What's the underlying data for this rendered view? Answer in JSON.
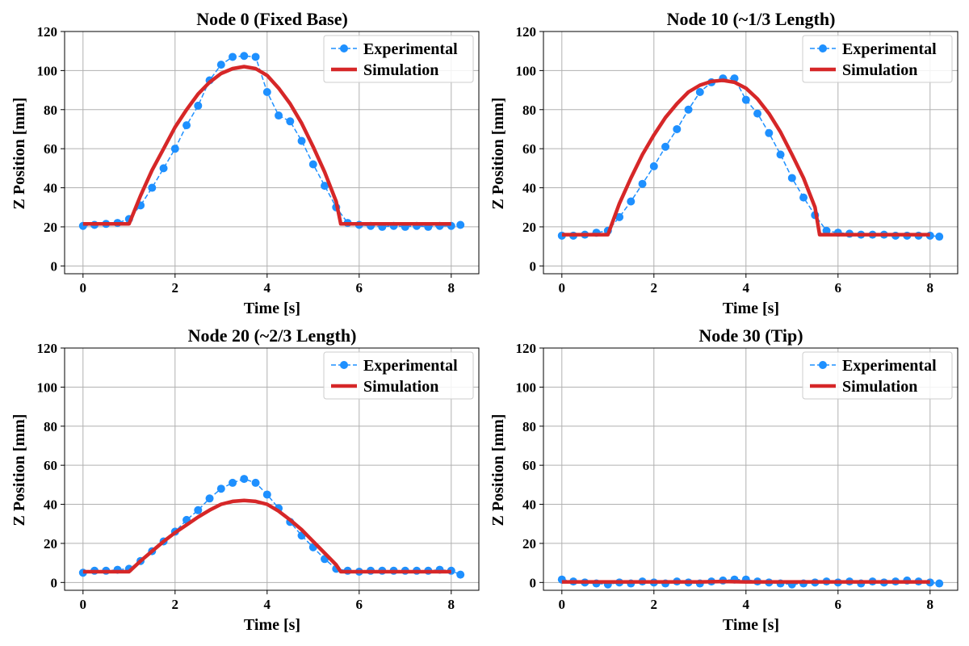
{
  "chart_data": [
    {
      "type": "line",
      "title": "Node 0 (Fixed Base)",
      "xlabel": "Time [s]",
      "ylabel": "Z Position [mm]",
      "xlim": [
        -0.4,
        8.6
      ],
      "ylim": [
        -4,
        120
      ],
      "xticks": [
        0,
        2,
        4,
        6,
        8
      ],
      "yticks": [
        0,
        20,
        40,
        60,
        80,
        100,
        120
      ],
      "grid": true,
      "legend": "top-right",
      "series": [
        {
          "name": "Experimental",
          "style": "dashed-markers",
          "color": "#1e90ff",
          "x": [
            0,
            0.25,
            0.5,
            0.75,
            1.0,
            1.25,
            1.5,
            1.75,
            2.0,
            2.25,
            2.5,
            2.75,
            3.0,
            3.25,
            3.5,
            3.75,
            4.0,
            4.25,
            4.5,
            4.75,
            5.0,
            5.25,
            5.5,
            5.75,
            6.0,
            6.25,
            6.5,
            6.75,
            7.0,
            7.25,
            7.5,
            7.75,
            8.0,
            8.2
          ],
          "y": [
            20.5,
            21,
            21.5,
            22,
            24,
            31,
            40,
            50,
            60,
            72,
            82,
            95,
            103,
            107,
            107.5,
            107,
            89,
            77,
            74,
            64,
            52,
            41,
            30,
            22,
            21,
            20.5,
            20,
            20.5,
            20,
            20.5,
            20,
            20.5,
            20.5,
            21
          ]
        },
        {
          "name": "Simulation",
          "style": "line",
          "color": "#d62728",
          "x": [
            0,
            1.0,
            1.25,
            1.5,
            1.75,
            2.0,
            2.25,
            2.5,
            2.75,
            3.0,
            3.25,
            3.5,
            3.75,
            4.0,
            4.25,
            4.5,
            4.75,
            5.0,
            5.25,
            5.5,
            5.6,
            6.0,
            8.0
          ],
          "y": [
            21.5,
            21.5,
            36,
            49,
            60,
            71,
            80,
            88,
            94,
            98.5,
            101,
            102,
            101,
            97.5,
            91,
            83,
            73,
            61,
            48,
            33,
            21.5,
            21.5,
            21.5
          ]
        }
      ]
    },
    {
      "type": "line",
      "title": "Node 10 (~1/3 Length)",
      "xlabel": "Time [s]",
      "ylabel": "Z Position [mm]",
      "xlim": [
        -0.4,
        8.6
      ],
      "ylim": [
        -4,
        120
      ],
      "xticks": [
        0,
        2,
        4,
        6,
        8
      ],
      "yticks": [
        0,
        20,
        40,
        60,
        80,
        100,
        120
      ],
      "grid": true,
      "legend": "top-right",
      "series": [
        {
          "name": "Experimental",
          "style": "dashed-markers",
          "color": "#1e90ff",
          "x": [
            0,
            0.25,
            0.5,
            0.75,
            1.0,
            1.25,
            1.5,
            1.75,
            2.0,
            2.25,
            2.5,
            2.75,
            3.0,
            3.25,
            3.5,
            3.75,
            4.0,
            4.25,
            4.5,
            4.75,
            5.0,
            5.25,
            5.5,
            5.75,
            6.0,
            6.25,
            6.5,
            6.75,
            7.0,
            7.25,
            7.5,
            7.75,
            8.0,
            8.2
          ],
          "y": [
            15.5,
            15.5,
            16,
            17,
            18,
            25,
            33,
            42,
            51,
            61,
            70,
            80,
            89,
            94,
            96,
            96,
            85,
            78,
            68,
            57,
            45,
            35,
            26,
            18,
            17,
            16.5,
            16,
            16,
            16,
            15.5,
            15.5,
            15.5,
            15.5,
            15
          ]
        },
        {
          "name": "Simulation",
          "style": "line",
          "color": "#d62728",
          "x": [
            0,
            1.0,
            1.25,
            1.5,
            1.75,
            2.0,
            2.25,
            2.5,
            2.75,
            3.0,
            3.25,
            3.5,
            3.75,
            4.0,
            4.25,
            4.5,
            4.75,
            5.0,
            5.25,
            5.5,
            5.6,
            6.0,
            8.0
          ],
          "y": [
            16,
            16,
            32,
            45,
            57,
            67,
            76,
            83,
            89,
            92.5,
            94.5,
            95,
            94,
            91,
            85.5,
            78,
            68.5,
            57,
            45,
            30,
            16,
            16,
            16
          ]
        }
      ]
    },
    {
      "type": "line",
      "title": "Node 20 (~2/3 Length)",
      "xlabel": "Time [s]",
      "ylabel": "Z Position [mm]",
      "xlim": [
        -0.4,
        8.6
      ],
      "ylim": [
        -4,
        120
      ],
      "xticks": [
        0,
        2,
        4,
        6,
        8
      ],
      "yticks": [
        0,
        20,
        40,
        60,
        80,
        100,
        120
      ],
      "grid": true,
      "legend": "top-right",
      "series": [
        {
          "name": "Experimental",
          "style": "dashed-markers",
          "color": "#1e90ff",
          "x": [
            0,
            0.25,
            0.5,
            0.75,
            1.0,
            1.25,
            1.5,
            1.75,
            2.0,
            2.25,
            2.5,
            2.75,
            3.0,
            3.25,
            3.5,
            3.75,
            4.0,
            4.25,
            4.5,
            4.75,
            5.0,
            5.25,
            5.5,
            5.75,
            6.0,
            6.25,
            6.5,
            6.75,
            7.0,
            7.25,
            7.5,
            7.75,
            8.0,
            8.2
          ],
          "y": [
            5,
            6,
            6,
            6.5,
            7,
            11,
            16,
            21,
            26,
            32,
            37,
            43,
            48,
            51,
            53,
            51,
            45,
            38,
            31,
            24,
            18,
            12,
            7,
            6,
            5.5,
            6,
            6,
            6,
            6,
            6,
            6,
            6.5,
            6,
            4
          ]
        },
        {
          "name": "Simulation",
          "style": "line",
          "color": "#d62728",
          "x": [
            0,
            1.0,
            1.25,
            1.5,
            1.75,
            2.0,
            2.25,
            2.5,
            2.75,
            3.0,
            3.25,
            3.5,
            3.75,
            4.0,
            4.25,
            4.5,
            4.75,
            5.0,
            5.25,
            5.5,
            5.6,
            6.0,
            8.0
          ],
          "y": [
            5.5,
            5.5,
            11,
            16,
            21,
            25.5,
            29.5,
            33.5,
            37,
            40,
            41.5,
            42,
            41.5,
            40,
            36.5,
            32,
            27,
            21,
            15,
            9,
            5.5,
            5.5,
            5.5
          ]
        }
      ]
    },
    {
      "type": "line",
      "title": "Node 30 (Tip)",
      "xlabel": "Time [s]",
      "ylabel": "Z Position [mm]",
      "xlim": [
        -0.4,
        8.6
      ],
      "ylim": [
        -4,
        120
      ],
      "xticks": [
        0,
        2,
        4,
        6,
        8
      ],
      "yticks": [
        0,
        20,
        40,
        60,
        80,
        100,
        120
      ],
      "grid": true,
      "legend": "top-right",
      "series": [
        {
          "name": "Experimental",
          "style": "dashed-markers",
          "color": "#1e90ff",
          "x": [
            0,
            0.25,
            0.5,
            0.75,
            1.0,
            1.25,
            1.5,
            1.75,
            2.0,
            2.25,
            2.5,
            2.75,
            3.0,
            3.25,
            3.5,
            3.75,
            4.0,
            4.25,
            4.5,
            4.75,
            5.0,
            5.25,
            5.5,
            5.75,
            6.0,
            6.25,
            6.5,
            6.75,
            7.0,
            7.25,
            7.5,
            7.75,
            8.0,
            8.2
          ],
          "y": [
            1.5,
            0.5,
            0,
            -0.5,
            -1,
            0,
            -0.5,
            0.5,
            0,
            -0.5,
            0.5,
            0,
            -0.5,
            0.5,
            1,
            1.5,
            1.5,
            0.5,
            0,
            -0.5,
            -1,
            -0.5,
            0,
            0.5,
            0,
            0.5,
            -0.5,
            0.5,
            0,
            0.5,
            1,
            0.5,
            0,
            -0.5
          ]
        },
        {
          "name": "Simulation",
          "style": "line",
          "color": "#d62728",
          "x": [
            0,
            1.0,
            2.0,
            3.0,
            3.5,
            4.0,
            5.0,
            6.0,
            7.0,
            8.0
          ],
          "y": [
            0.3,
            0.3,
            0.3,
            0.3,
            0.5,
            0.3,
            0.3,
            0.3,
            0.3,
            0.3
          ]
        }
      ]
    }
  ]
}
